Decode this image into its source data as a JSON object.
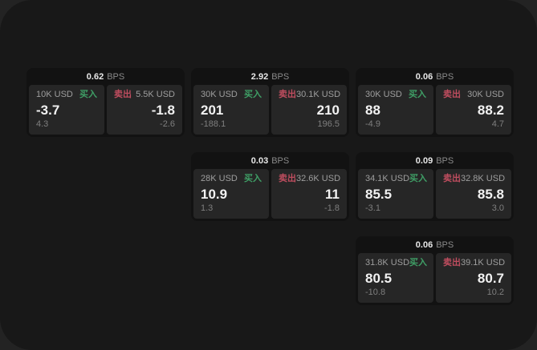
{
  "colors": {
    "bg_outer": "#232323",
    "bg_app": "#181818",
    "bg_card": "#121212",
    "bg_panel": "#262626",
    "buy": "#3f9f66",
    "sell": "#bf4d5f"
  },
  "labels": {
    "bps": "BPS",
    "buy": "买入",
    "sell": "卖出"
  },
  "cards": [
    {
      "grid": {
        "row": 1,
        "col": 1
      },
      "bps": "0.62",
      "buy": {
        "amount": "10K USD",
        "value": "-3.7",
        "delta": "4.3"
      },
      "sell": {
        "amount": "5.5K USD",
        "value": "-1.8",
        "delta": "-2.6"
      }
    },
    {
      "grid": {
        "row": 1,
        "col": 2
      },
      "bps": "2.92",
      "buy": {
        "amount": "30K USD",
        "value": "201",
        "delta": "-188.1"
      },
      "sell": {
        "amount": "30.1K USD",
        "value": "210",
        "delta": "196.5"
      }
    },
    {
      "grid": {
        "row": 1,
        "col": 3
      },
      "bps": "0.06",
      "buy": {
        "amount": "30K USD",
        "value": "88",
        "delta": "-4.9"
      },
      "sell": {
        "amount": "30K USD",
        "value": "88.2",
        "delta": "4.7"
      }
    },
    {
      "grid": {
        "row": 2,
        "col": 2
      },
      "bps": "0.03",
      "buy": {
        "amount": "28K USD",
        "value": "10.9",
        "delta": "1.3"
      },
      "sell": {
        "amount": "32.6K USD",
        "value": "11",
        "delta": "-1.8"
      }
    },
    {
      "grid": {
        "row": 2,
        "col": 3
      },
      "bps": "0.09",
      "buy": {
        "amount": "34.1K USD",
        "value": "85.5",
        "delta": "-3.1"
      },
      "sell": {
        "amount": "32.8K USD",
        "value": "85.8",
        "delta": "3.0"
      }
    },
    {
      "grid": {
        "row": 3,
        "col": 3
      },
      "bps": "0.06",
      "buy": {
        "amount": "31.8K USD",
        "value": "80.5",
        "delta": "-10.8"
      },
      "sell": {
        "amount": "39.1K USD",
        "value": "80.7",
        "delta": "10.2"
      }
    }
  ]
}
